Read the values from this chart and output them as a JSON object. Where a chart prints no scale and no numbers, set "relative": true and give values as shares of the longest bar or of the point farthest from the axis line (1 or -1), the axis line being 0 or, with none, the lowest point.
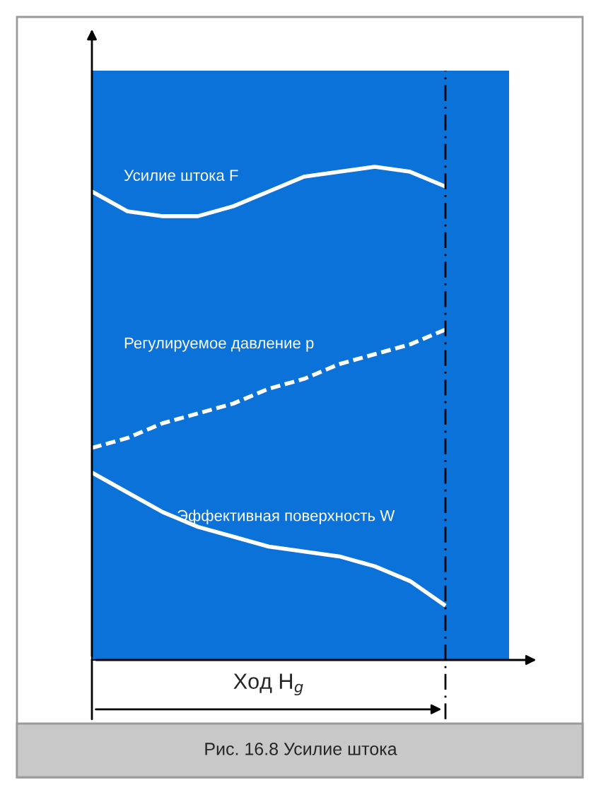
{
  "chart_data": {
    "type": "line",
    "relative": true,
    "categories": [
      null,
      null,
      null,
      null,
      null,
      null,
      null,
      null,
      null,
      null,
      null,
      null,
      null
    ],
    "series": [
      {
        "name": "Усилие штока F",
        "color": "#ffffff",
        "line_style": "solid",
        "values": [
          0.95,
          0.91,
          0.9,
          0.9,
          0.92,
          0.95,
          0.98,
          0.99,
          1.0,
          0.99,
          0.96,
          null,
          null
        ]
      },
      {
        "name": "Регулируемое давление p",
        "color": "#ffffff",
        "line_style": "dashed",
        "values": [
          0.43,
          0.45,
          0.48,
          0.5,
          0.52,
          0.55,
          0.57,
          0.6,
          0.62,
          0.64,
          0.67,
          null,
          null
        ]
      },
      {
        "name": "Эффективная поверхность W",
        "color": "#ffffff",
        "line_style": "solid",
        "values": [
          0.38,
          0.34,
          0.3,
          0.27,
          0.25,
          0.23,
          0.22,
          0.21,
          0.19,
          0.16,
          0.11,
          null,
          null
        ]
      }
    ],
    "marker": "none",
    "annotations": [
      "Ход H$_{g}$",
      "Рис. 16.8 Усилие штока"
    ]
  }
}
